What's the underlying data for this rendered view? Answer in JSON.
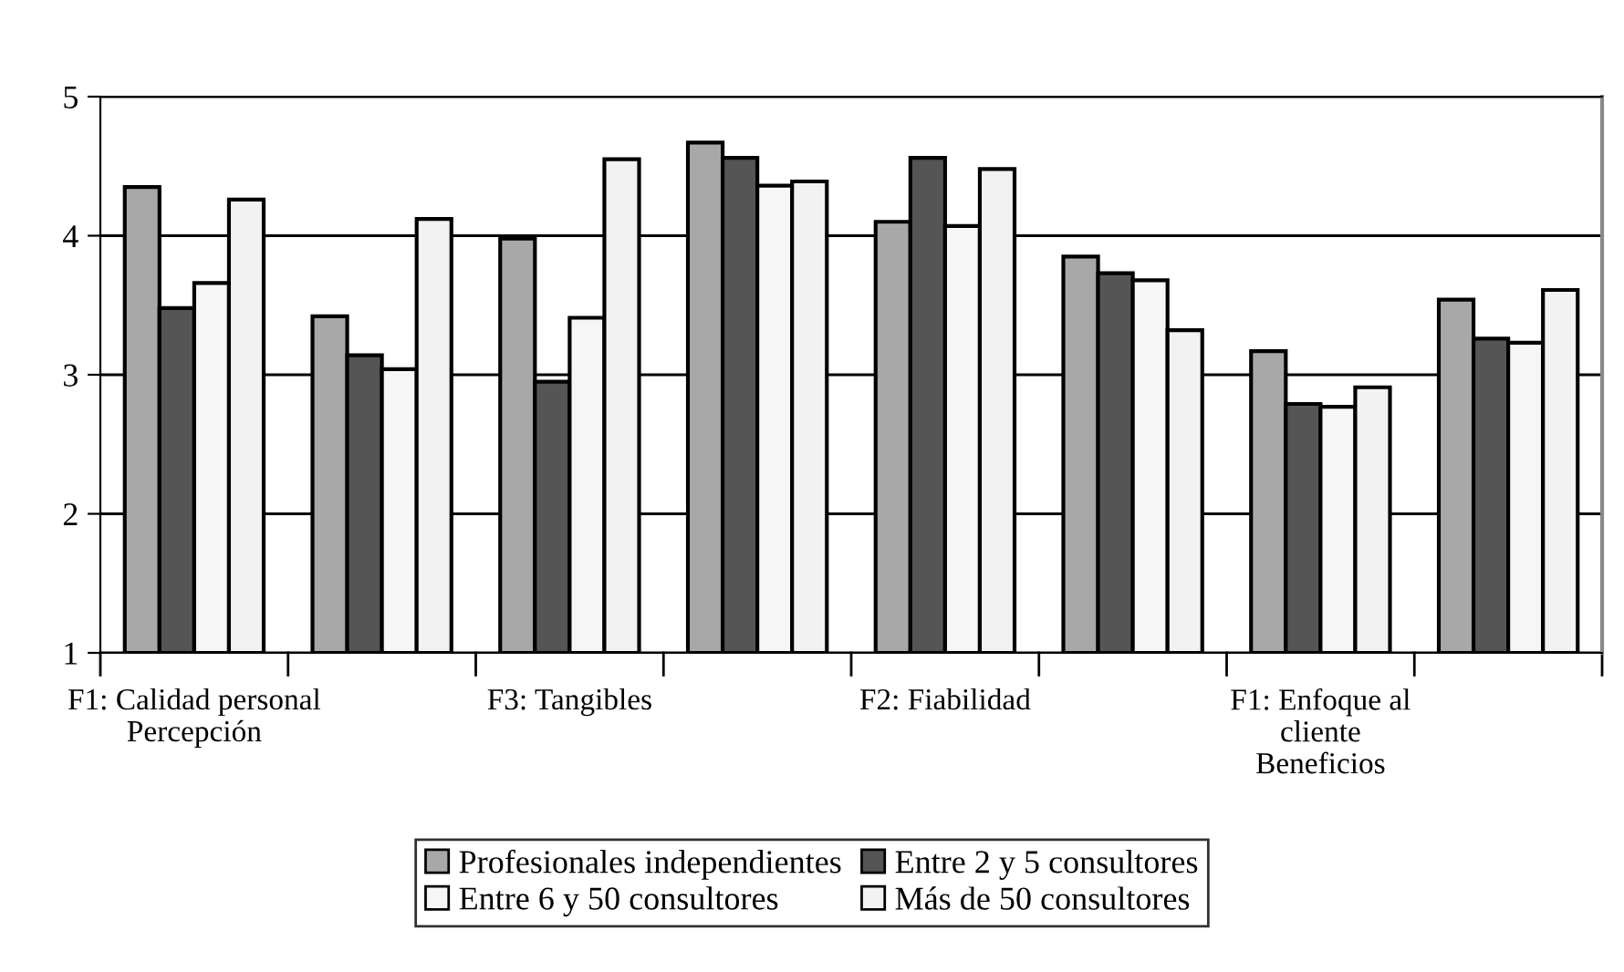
{
  "chart_data": {
    "type": "bar",
    "categories": [
      "F1: Calidad personal\nPercepción",
      null,
      "F3: Tangibles",
      null,
      "F2: Fiabilidad",
      null,
      "F1: Enfoque al\ncliente\nBeneficios",
      null
    ],
    "series": [
      {
        "name": "Profesionales independientes",
        "color": "#a8a8a8",
        "values": [
          4.35,
          3.42,
          3.98,
          4.67,
          4.1,
          3.85,
          3.17,
          3.54
        ]
      },
      {
        "name": "Entre 2 y 5 consultores",
        "color": "#555555",
        "values": [
          3.48,
          3.14,
          2.95,
          4.56,
          4.56,
          3.73,
          2.79,
          3.26
        ]
      },
      {
        "name": "Entre 6 y 50 consultores",
        "color": "#f6f6f6",
        "values": [
          3.66,
          3.04,
          3.41,
          4.36,
          4.07,
          3.68,
          2.77,
          3.23
        ]
      },
      {
        "name": "Más de 50 consultores",
        "color": "#f2f2f2",
        "values": [
          4.26,
          4.12,
          4.55,
          4.39,
          4.48,
          3.32,
          2.91,
          3.61
        ]
      }
    ],
    "ylim": [
      1,
      5
    ],
    "yticks": [
      1,
      2,
      3,
      4,
      5
    ],
    "grid": "y",
    "legend": "bottom"
  }
}
